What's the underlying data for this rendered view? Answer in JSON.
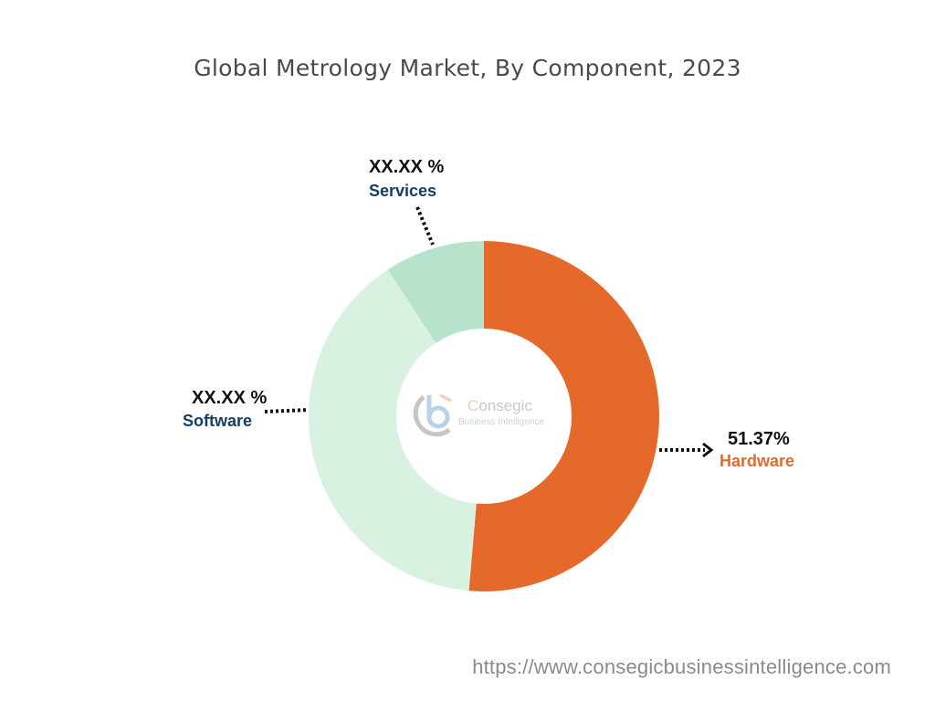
{
  "chart_data": {
    "type": "pie",
    "subtype": "donut",
    "title": "Global Metrology Market, By Component, 2023",
    "slices": [
      {
        "name": "Hardware",
        "value": 51.37,
        "label": "51.37%",
        "color": "#e4692a",
        "label_color": "#e4692a"
      },
      {
        "name": "Software",
        "value": 39.4,
        "label": "XX.XX %",
        "color": "#d9f1e0",
        "label_color": "#123f66"
      },
      {
        "name": "Services",
        "value": 9.23,
        "label": "XX.XX %",
        "color": "#b7e3cc",
        "label_color": "#123f66"
      }
    ],
    "start": "top",
    "direction": "clockwise for Hardware; remaining counter-clockwise order Services, Software",
    "legend": "none"
  },
  "logo": {
    "brand_first": "C",
    "brand_rest": "onsegic",
    "sub": "Business Intelligence"
  },
  "footer": {
    "url": "https://www.consegicbusinessintelligence.com"
  }
}
